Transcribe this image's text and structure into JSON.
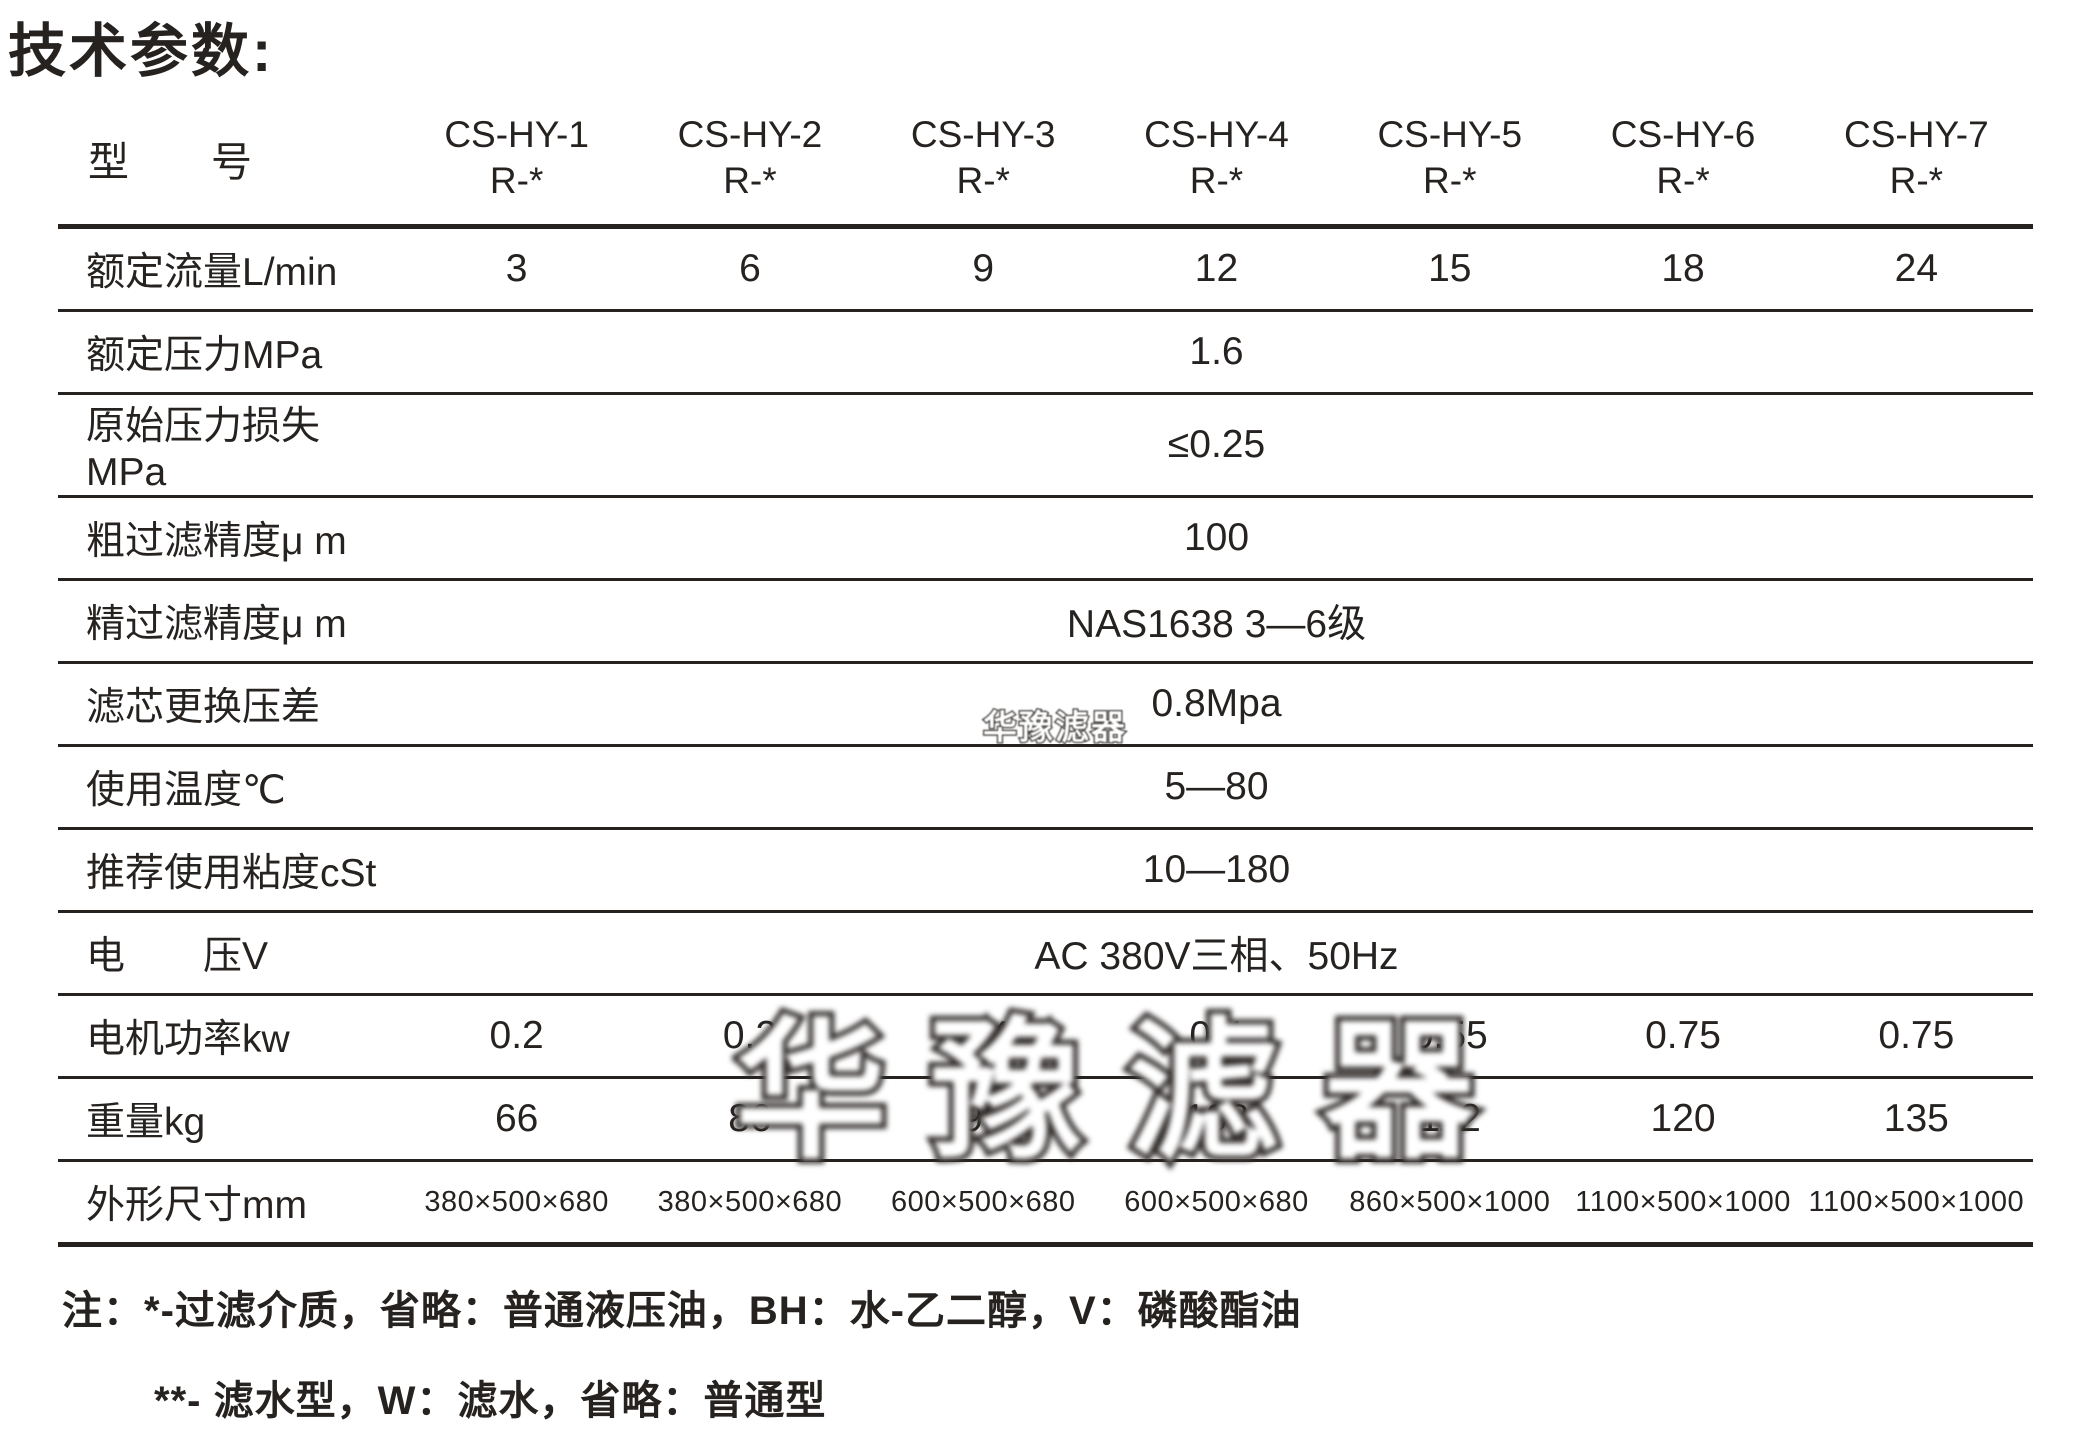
{
  "title": "技术参数:",
  "table": {
    "model_label": "型　　号",
    "models": [
      {
        "name": "CS-HY-1",
        "sub": "R-*"
      },
      {
        "name": "CS-HY-2",
        "sub": "R-*"
      },
      {
        "name": "CS-HY-3",
        "sub": "R-*"
      },
      {
        "name": "CS-HY-4",
        "sub": "R-*"
      },
      {
        "name": "CS-HY-5",
        "sub": "R-*"
      },
      {
        "name": "CS-HY-6",
        "sub": "R-*"
      },
      {
        "name": "CS-HY-7",
        "sub": "R-*"
      }
    ],
    "rows": [
      {
        "label": "额定流量L/min",
        "values": [
          "3",
          "6",
          "9",
          "12",
          "15",
          "18",
          "24"
        ]
      },
      {
        "label": "额定压力MPa",
        "value": "1.6"
      },
      {
        "label": "原始压力损失MPa",
        "value": "≤0.25"
      },
      {
        "label": "粗过滤精度μ m",
        "value": "100"
      },
      {
        "label": "精过滤精度μ m",
        "value": "NAS1638 3—6级"
      },
      {
        "label": "滤芯更换压差",
        "value": "0.8Mpa"
      },
      {
        "label": "使用温度℃",
        "value": "5—80"
      },
      {
        "label": "推荐使用粘度cSt",
        "value": "10—180"
      },
      {
        "label": "电　　压V",
        "value": "AC 380V三相、50Hz"
      },
      {
        "label": "电机功率kw",
        "values": [
          "0.2",
          "0.2",
          "0.4",
          "0.4",
          "0.55",
          "0.75",
          "0.75"
        ]
      },
      {
        "label": "重量kg",
        "values": [
          "66",
          "86",
          "90",
          "108",
          "112",
          "120",
          "135"
        ]
      },
      {
        "label": "外形尺寸mm",
        "small": true,
        "values": [
          "380×500×680",
          "380×500×680",
          "600×500×680",
          "600×500×680",
          "860×500×1000",
          "1100×500×1000",
          "1100×500×1000"
        ]
      }
    ]
  },
  "notes": [
    "注：*-过滤介质，省略：普通液压油，BH：水-乙二醇，V：磷酸酯油",
    "**- 滤水型，W：滤水，省略：普通型"
  ],
  "watermarks": {
    "small": "华豫滤器",
    "large": "华豫滤器"
  }
}
